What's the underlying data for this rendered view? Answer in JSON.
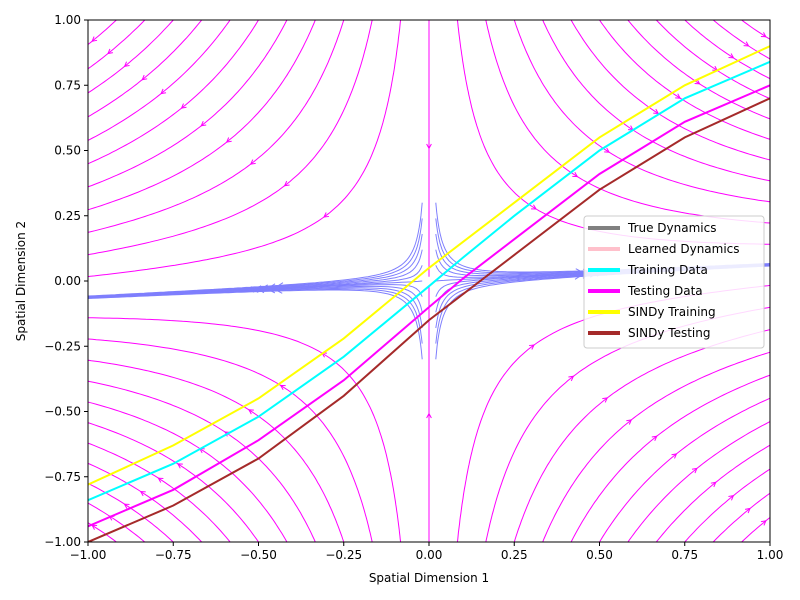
{
  "chart_data": {
    "type": "line",
    "title": "",
    "xlabel": "Spatial Dimension 1",
    "ylabel": "Spatial Dimension 2",
    "xlim": [
      -1.0,
      1.0
    ],
    "ylim": [
      -1.0,
      1.0
    ],
    "xticks": [
      "−1.00",
      "−0.75",
      "−0.50",
      "−0.25",
      "0.00",
      "0.25",
      "0.50",
      "0.75",
      "1.00"
    ],
    "yticks": [
      "−1.00",
      "−0.75",
      "−0.50",
      "−0.25",
      "0.00",
      "0.25",
      "0.50",
      "0.75",
      "1.00"
    ],
    "grid": false,
    "legend_position": "center-right",
    "background_field": {
      "kind": "streamplot",
      "description_colors": [
        "#ff00ff",
        "#b04ff5",
        "#7f7ffd"
      ]
    },
    "series": [
      {
        "name": "True Dynamics",
        "color": "#808080",
        "x": [],
        "y": []
      },
      {
        "name": "Learned Dynamics",
        "color": "#ffc0cb",
        "x": [],
        "y": []
      },
      {
        "name": "Training Data",
        "color": "#00ffff",
        "x": [
          -1.0,
          -0.75,
          -0.5,
          -0.25,
          0.0,
          0.1,
          0.25,
          0.5,
          0.75,
          1.0
        ],
        "y": [
          -0.84,
          -0.7,
          -0.52,
          -0.29,
          -0.02,
          0.09,
          0.25,
          0.5,
          0.7,
          0.84
        ]
      },
      {
        "name": "Testing Data",
        "color": "#ff00ff",
        "x": [
          -1.0,
          -0.75,
          -0.5,
          -0.25,
          0.0,
          0.1,
          0.25,
          0.5,
          0.75,
          1.0
        ],
        "y": [
          -0.94,
          -0.8,
          -0.61,
          -0.38,
          -0.1,
          0.01,
          0.16,
          0.41,
          0.61,
          0.75
        ]
      },
      {
        "name": "SINDy Training",
        "color": "#ffff00",
        "x": [
          -1.0,
          -0.75,
          -0.5,
          -0.25,
          0.0,
          0.1,
          0.25,
          0.5,
          0.75,
          1.0
        ],
        "y": [
          -0.78,
          -0.63,
          -0.45,
          -0.22,
          0.05,
          0.15,
          0.3,
          0.55,
          0.75,
          0.9
        ]
      },
      {
        "name": "SINDy Testing",
        "color": "#a52a2a",
        "x": [
          -1.0,
          -0.75,
          -0.5,
          -0.25,
          0.0,
          0.1,
          0.25,
          0.5,
          0.75,
          1.0
        ],
        "y": [
          -1.0,
          -0.86,
          -0.68,
          -0.44,
          -0.15,
          -0.05,
          0.1,
          0.35,
          0.55,
          0.7
        ]
      }
    ]
  }
}
